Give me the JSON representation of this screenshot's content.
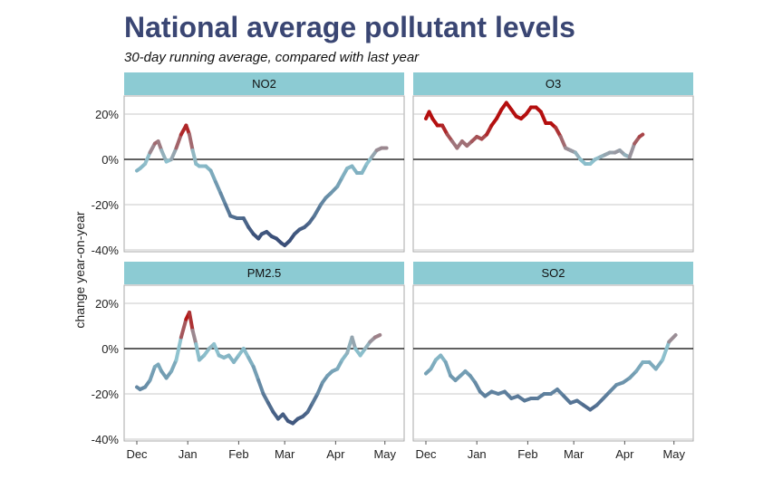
{
  "colors": {
    "strip": "#8ccbd3",
    "positive": "#b40f0f",
    "zero": "#8fc3cf",
    "negative": "#3a4e78",
    "zero_line": "#000000",
    "grid": "#c8c8c8",
    "frame": "#aaaaaa",
    "title": "#3a4673"
  },
  "chart_data": {
    "type": "line",
    "title": "National average pollutant levels",
    "subtitle": "30-day running average, compared with last year",
    "ylabel": "change year-on-year",
    "ylim": [
      -40,
      20
    ],
    "y_ticks": [
      20,
      0,
      -20,
      -40
    ],
    "y_tick_labels": [
      "20%",
      "0%",
      "-20%",
      "-40%"
    ],
    "x_ticks": [
      0,
      31,
      62,
      90,
      121,
      151
    ],
    "x_tick_labels": [
      "Dec",
      "Jan",
      "Feb",
      "Mar",
      "Apr",
      "May"
    ],
    "x_range": [
      0,
      155
    ],
    "x_unit": "days since Dec 1",
    "panels": [
      {
        "name": "NO2",
        "points": [
          [
            0,
            -5
          ],
          [
            2,
            -4
          ],
          [
            5,
            -2
          ],
          [
            8,
            3
          ],
          [
            11,
            7
          ],
          [
            13,
            8
          ],
          [
            15,
            4
          ],
          [
            18,
            -1
          ],
          [
            21,
            0
          ],
          [
            24,
            5
          ],
          [
            27,
            11
          ],
          [
            30,
            15
          ],
          [
            32,
            11
          ],
          [
            34,
            4
          ],
          [
            36,
            -2
          ],
          [
            38,
            -3
          ],
          [
            42,
            -3
          ],
          [
            45,
            -5
          ],
          [
            48,
            -10
          ],
          [
            51,
            -15
          ],
          [
            54,
            -20
          ],
          [
            57,
            -25
          ],
          [
            61,
            -26
          ],
          [
            65,
            -26
          ],
          [
            68,
            -30
          ],
          [
            71,
            -33
          ],
          [
            74,
            -35
          ],
          [
            76,
            -33
          ],
          [
            79,
            -32
          ],
          [
            82,
            -34
          ],
          [
            85,
            -35
          ],
          [
            88,
            -37
          ],
          [
            90,
            -38
          ],
          [
            93,
            -36
          ],
          [
            96,
            -33
          ],
          [
            99,
            -31
          ],
          [
            102,
            -30
          ],
          [
            105,
            -28
          ],
          [
            108,
            -25
          ],
          [
            112,
            -20
          ],
          [
            115,
            -17
          ],
          [
            118,
            -15
          ],
          [
            122,
            -12
          ],
          [
            125,
            -8
          ],
          [
            128,
            -4
          ],
          [
            131,
            -3
          ],
          [
            134,
            -6
          ],
          [
            137,
            -6
          ],
          [
            140,
            -2
          ],
          [
            143,
            1
          ],
          [
            146,
            4
          ],
          [
            149,
            5
          ],
          [
            152,
            5
          ]
        ]
      },
      {
        "name": "O3",
        "points": [
          [
            0,
            18
          ],
          [
            2,
            21
          ],
          [
            4,
            18
          ],
          [
            7,
            15
          ],
          [
            10,
            15
          ],
          [
            13,
            11
          ],
          [
            16,
            8
          ],
          [
            19,
            5
          ],
          [
            22,
            8
          ],
          [
            25,
            6
          ],
          [
            28,
            8
          ],
          [
            31,
            10
          ],
          [
            34,
            9
          ],
          [
            37,
            11
          ],
          [
            40,
            15
          ],
          [
            43,
            18
          ],
          [
            46,
            22
          ],
          [
            49,
            25
          ],
          [
            52,
            22
          ],
          [
            55,
            19
          ],
          [
            58,
            18
          ],
          [
            61,
            20
          ],
          [
            64,
            23
          ],
          [
            67,
            23
          ],
          [
            70,
            21
          ],
          [
            73,
            16
          ],
          [
            76,
            16
          ],
          [
            79,
            14
          ],
          [
            82,
            10
          ],
          [
            85,
            5
          ],
          [
            88,
            4
          ],
          [
            91,
            3
          ],
          [
            94,
            0
          ],
          [
            97,
            -2
          ],
          [
            100,
            -2
          ],
          [
            103,
            0
          ],
          [
            106,
            1
          ],
          [
            109,
            2
          ],
          [
            112,
            3
          ],
          [
            115,
            3
          ],
          [
            118,
            4
          ],
          [
            121,
            2
          ],
          [
            124,
            1
          ],
          [
            127,
            7
          ],
          [
            130,
            10
          ],
          [
            132,
            11
          ]
        ]
      },
      {
        "name": "PM2.5",
        "points": [
          [
            0,
            -17
          ],
          [
            2,
            -18
          ],
          [
            5,
            -17
          ],
          [
            8,
            -14
          ],
          [
            11,
            -8
          ],
          [
            13,
            -7
          ],
          [
            15,
            -10
          ],
          [
            18,
            -13
          ],
          [
            21,
            -10
          ],
          [
            24,
            -5
          ],
          [
            27,
            5
          ],
          [
            30,
            13
          ],
          [
            32,
            16
          ],
          [
            34,
            8
          ],
          [
            36,
            2
          ],
          [
            38,
            -5
          ],
          [
            41,
            -3
          ],
          [
            44,
            0
          ],
          [
            47,
            2
          ],
          [
            50,
            -3
          ],
          [
            53,
            -4
          ],
          [
            56,
            -3
          ],
          [
            59,
            -6
          ],
          [
            62,
            -3
          ],
          [
            65,
            0
          ],
          [
            68,
            -4
          ],
          [
            71,
            -8
          ],
          [
            74,
            -14
          ],
          [
            77,
            -20
          ],
          [
            80,
            -24
          ],
          [
            83,
            -28
          ],
          [
            86,
            -31
          ],
          [
            89,
            -29
          ],
          [
            92,
            -32
          ],
          [
            95,
            -33
          ],
          [
            98,
            -31
          ],
          [
            101,
            -30
          ],
          [
            104,
            -28
          ],
          [
            107,
            -24
          ],
          [
            110,
            -20
          ],
          [
            113,
            -15
          ],
          [
            116,
            -12
          ],
          [
            119,
            -10
          ],
          [
            122,
            -9
          ],
          [
            125,
            -5
          ],
          [
            128,
            -2
          ],
          [
            131,
            5
          ],
          [
            133,
            0
          ],
          [
            136,
            -3
          ],
          [
            139,
            0
          ],
          [
            142,
            3
          ],
          [
            145,
            5
          ],
          [
            148,
            6
          ]
        ]
      },
      {
        "name": "SO2",
        "points": [
          [
            0,
            -11
          ],
          [
            3,
            -9
          ],
          [
            6,
            -5
          ],
          [
            9,
            -3
          ],
          [
            12,
            -6
          ],
          [
            15,
            -12
          ],
          [
            18,
            -14
          ],
          [
            21,
            -12
          ],
          [
            24,
            -10
          ],
          [
            27,
            -12
          ],
          [
            30,
            -15
          ],
          [
            33,
            -19
          ],
          [
            36,
            -21
          ],
          [
            40,
            -19
          ],
          [
            44,
            -20
          ],
          [
            48,
            -19
          ],
          [
            52,
            -22
          ],
          [
            56,
            -21
          ],
          [
            60,
            -23
          ],
          [
            64,
            -22
          ],
          [
            68,
            -22
          ],
          [
            72,
            -20
          ],
          [
            76,
            -20
          ],
          [
            80,
            -18
          ],
          [
            84,
            -21
          ],
          [
            88,
            -24
          ],
          [
            92,
            -23
          ],
          [
            96,
            -25
          ],
          [
            100,
            -27
          ],
          [
            104,
            -25
          ],
          [
            108,
            -22
          ],
          [
            112,
            -19
          ],
          [
            116,
            -16
          ],
          [
            120,
            -15
          ],
          [
            124,
            -13
          ],
          [
            128,
            -10
          ],
          [
            132,
            -6
          ],
          [
            136,
            -6
          ],
          [
            140,
            -9
          ],
          [
            144,
            -5
          ],
          [
            148,
            3
          ],
          [
            152,
            6
          ]
        ]
      }
    ]
  }
}
